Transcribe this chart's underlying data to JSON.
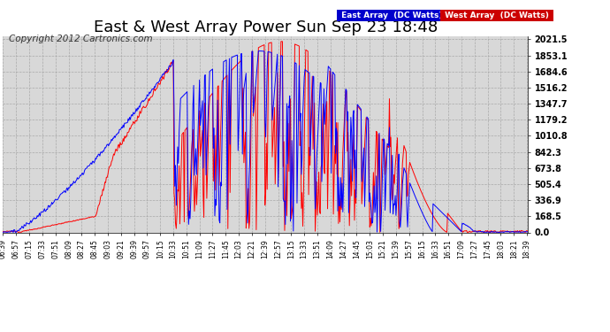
{
  "title": "East & West Array Power Sun Sep 23 18:48",
  "copyright": "Copyright 2012 Cartronics.com",
  "legend_east": "East Array  (DC Watts)",
  "legend_west": "West Array  (DC Watts)",
  "east_color": "#0000ff",
  "west_color": "#ff0000",
  "yticks": [
    0.0,
    168.5,
    336.9,
    505.4,
    673.8,
    842.3,
    1010.8,
    1179.2,
    1347.7,
    1516.2,
    1684.6,
    1853.1,
    2021.5
  ],
  "ymax": 2021.5,
  "ymin": 0.0,
  "bg_color": "#ffffff",
  "plot_bg": "#d8d8d8",
  "grid_color": "#aaaaaa",
  "title_fontsize": 13,
  "copyright_fontsize": 7.5,
  "x_tick_interval_minutes": 18
}
